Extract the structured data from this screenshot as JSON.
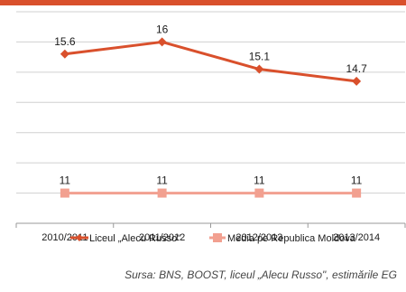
{
  "chart_data": {
    "type": "line",
    "categories": [
      "2010/2011",
      "2011/2012",
      "2012/2013",
      "2013/2014"
    ],
    "series": [
      {
        "name": "Liceul „Alecu Russo\"",
        "values": [
          15.6,
          16,
          15.1,
          14.7
        ],
        "color": "#D9502C",
        "marker": "diamond"
      },
      {
        "name": "Media pe Republica Moldova",
        "values": [
          11,
          11,
          11,
          11
        ],
        "color": "#F2A090",
        "marker": "square"
      }
    ],
    "value_labels": {
      "s0": [
        "15.6",
        "16",
        "15.1",
        "14.7"
      ],
      "s1": [
        "11",
        "11",
        "11",
        "11"
      ]
    },
    "ylim": [
      10,
      17
    ],
    "grid": true,
    "legend_position": "bottom"
  },
  "source_note": "Sursa: BNS, BOOST, liceul „Alecu Russo\", estimările EG"
}
